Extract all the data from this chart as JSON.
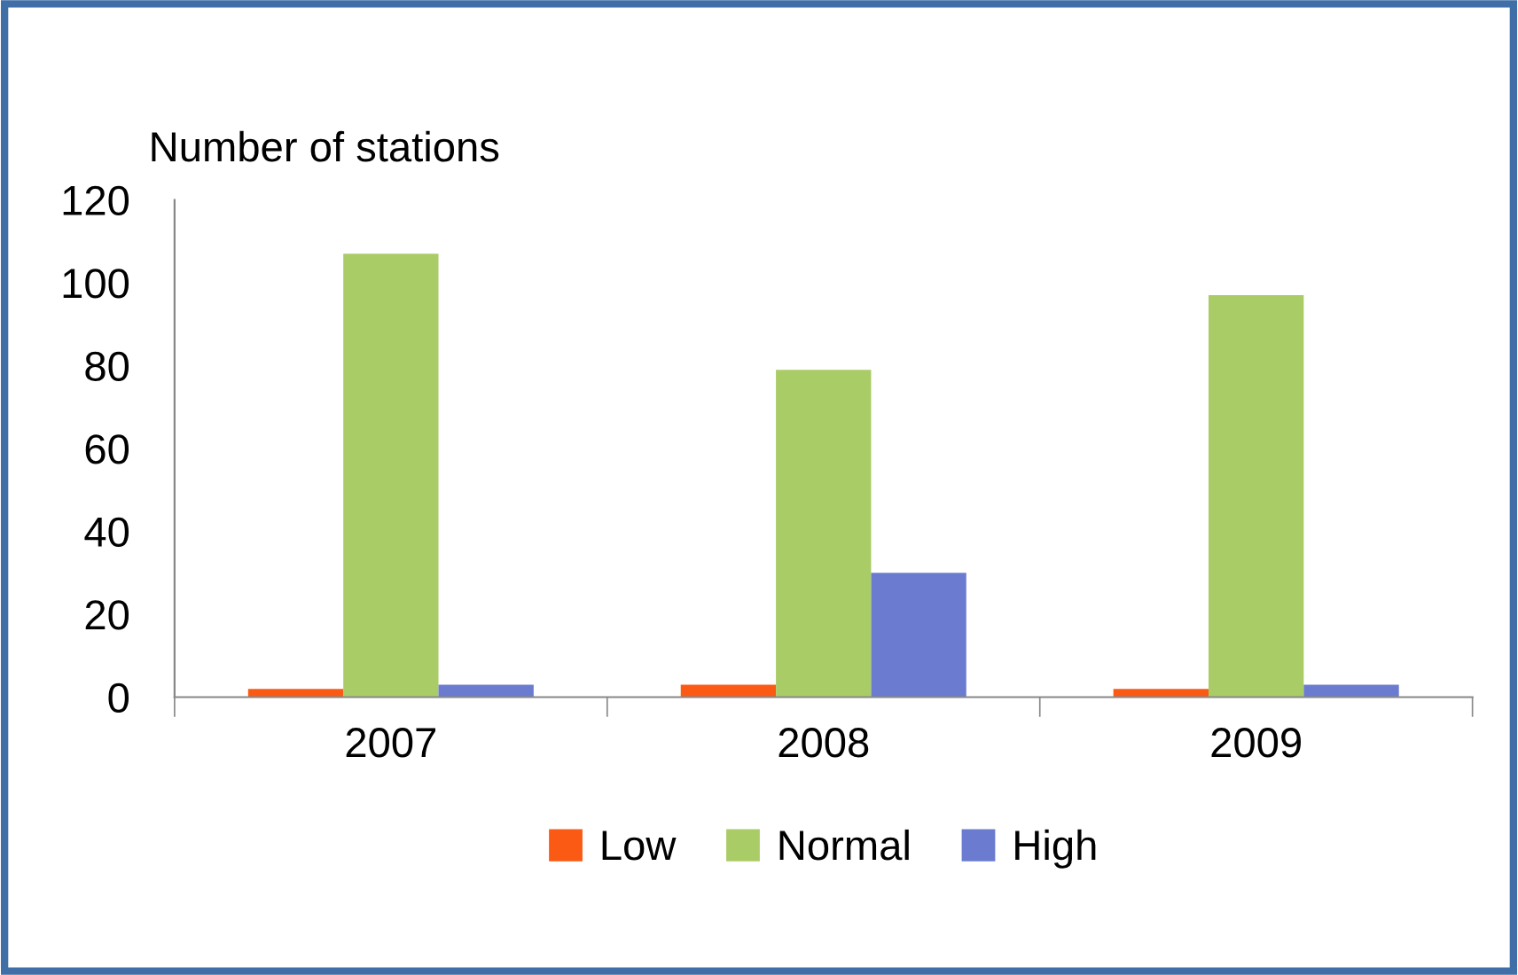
{
  "chart_data": {
    "type": "bar",
    "ylabel": "Number of stations",
    "categories": [
      "2007",
      "2008",
      "2009"
    ],
    "series": [
      {
        "name": "Low",
        "color": "#fa5a14",
        "values": [
          2,
          3,
          2
        ]
      },
      {
        "name": "Normal",
        "color": "#a9cc66",
        "values": [
          107,
          79,
          97
        ]
      },
      {
        "name": "High",
        "color": "#6b7cd0",
        "values": [
          3,
          30,
          3
        ]
      }
    ],
    "ylim": [
      0,
      120
    ],
    "yticks": [
      0,
      20,
      40,
      60,
      80,
      100,
      120
    ],
    "grid": false,
    "legend": "bottom"
  }
}
